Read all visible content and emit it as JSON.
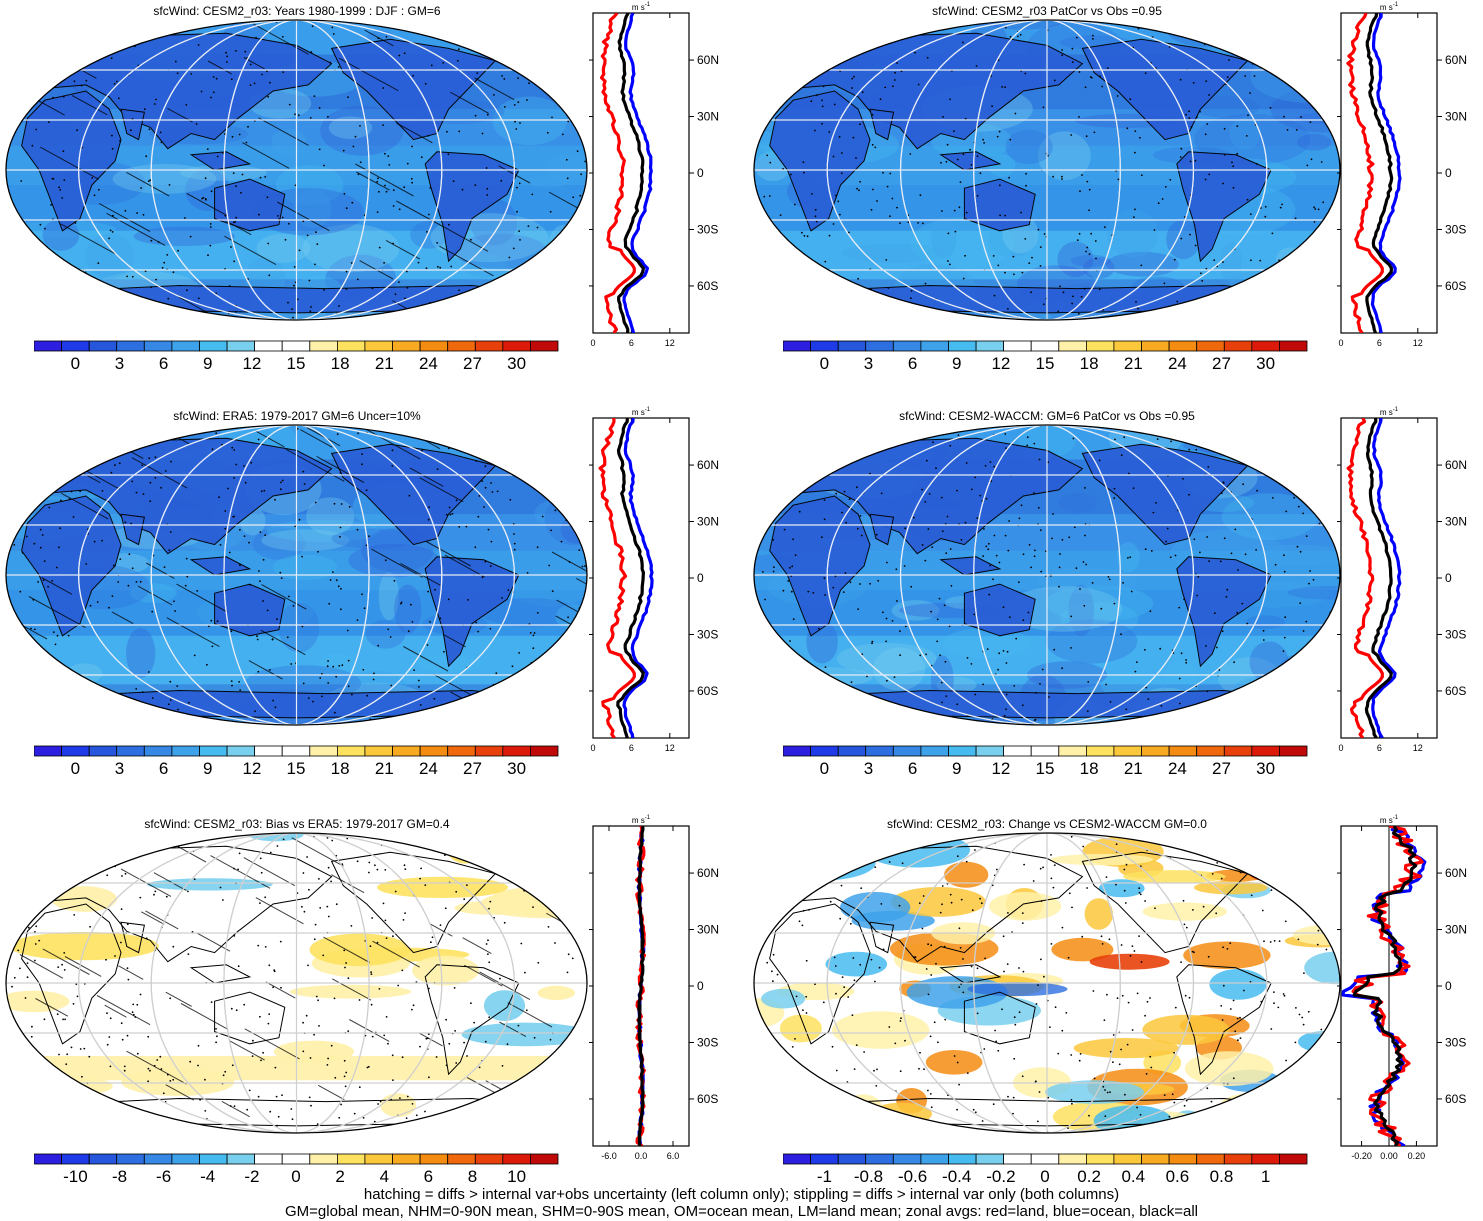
{
  "footer": {
    "line1": "hatching = diffs > internal var+obs uncertainty (left column only); stippling = diffs > internal var only (both columns)",
    "line2": "GM=global mean, NHM=0-90N mean, SHM=0-90S mean, OM=ocean mean, LM=land mean; zonal avgs: red=land, blue=ocean, black=all"
  },
  "colorbars": {
    "abs": {
      "labels": [
        "0",
        "3",
        "6",
        "9",
        "12",
        "15",
        "18",
        "21",
        "24",
        "27",
        "30"
      ],
      "colors": [
        "#2c1fe0",
        "#1f3be8",
        "#2556dc",
        "#2d6fe0",
        "#3688e4",
        "#3ea2ea",
        "#46bbf0",
        "#79cfee",
        "#ffffff",
        "#ffffff",
        "#fff1a8",
        "#fde25f",
        "#fbc83b",
        "#f8aa22",
        "#f58c12",
        "#f0680c",
        "#e8400a",
        "#dc1a0a",
        "#c00a0a"
      ]
    },
    "bias": {
      "labels": [
        "-10",
        "-8",
        "-6",
        "-4",
        "-2",
        "0",
        "2",
        "4",
        "6",
        "8",
        "10"
      ],
      "colors": [
        "#2c1fe0",
        "#1f3be8",
        "#2556dc",
        "#2d6fe0",
        "#3688e4",
        "#3ea2ea",
        "#46bbf0",
        "#79cfee",
        "#ffffff",
        "#ffffff",
        "#fff1a8",
        "#fde25f",
        "#fbc83b",
        "#f8aa22",
        "#f58c12",
        "#f0680c",
        "#e8400a",
        "#dc1a0a",
        "#c00a0a"
      ]
    },
    "change": {
      "labels": [
        "-1",
        "-0.8",
        "-0.6",
        "-0.4",
        "-0.2",
        "0",
        "0.2",
        "0.4",
        "0.6",
        "0.8",
        "1"
      ],
      "colors": [
        "#2c1fe0",
        "#1f3be8",
        "#2556dc",
        "#2d6fe0",
        "#3688e4",
        "#3ea2ea",
        "#46bbf0",
        "#79cfee",
        "#ffffff",
        "#ffffff",
        "#fff1a8",
        "#fde25f",
        "#fbc83b",
        "#f8aa22",
        "#f58c12",
        "#f0680c",
        "#e8400a",
        "#dc1a0a",
        "#c00a0a"
      ]
    }
  },
  "lat_labels": [
    "60N",
    "30N",
    "0",
    "30S",
    "60S"
  ],
  "units": "m s",
  "units_sup": "-1",
  "panels": [
    {
      "title": "sfcWind: CESM2_r03: Years 1980-1999 : DJF : GM=6",
      "map_style": "abs",
      "hatched": true,
      "profile": {
        "xlim": [
          0,
          15
        ],
        "xticks": [
          "0",
          "6",
          "12"
        ],
        "range": "abs",
        "chart_data": {
          "type": "line",
          "x_label": "m s-1",
          "series": [
            {
              "name": "land",
              "color": "#ff0000"
            },
            {
              "name": "ocean",
              "color": "#0000ff"
            },
            {
              "name": "all",
              "color": "#000000"
            }
          ]
        }
      }
    },
    {
      "title": "sfcWind: CESM2_r03 PatCor vs Obs =0.95",
      "map_style": "abs",
      "hatched": false,
      "profile": {
        "xlim": [
          0,
          15
        ],
        "xticks": [
          "0",
          "6",
          "12"
        ],
        "range": "abs",
        "chart_data": {
          "type": "line",
          "x_label": "m s-1",
          "series": [
            {
              "name": "land",
              "color": "#ff0000"
            },
            {
              "name": "ocean",
              "color": "#0000ff"
            },
            {
              "name": "all",
              "color": "#000000"
            }
          ]
        }
      }
    },
    {
      "title": "sfcWind: ERA5: 1979-2017 GM=6 Uncer=10%",
      "map_style": "abs",
      "hatched": true,
      "profile": {
        "xlim": [
          0,
          15
        ],
        "xticks": [
          "0",
          "6",
          "12"
        ],
        "range": "abs",
        "chart_data": {
          "type": "line",
          "x_label": "m s-1",
          "series": [
            {
              "name": "land",
              "color": "#ff0000"
            },
            {
              "name": "ocean",
              "color": "#0000ff"
            },
            {
              "name": "all",
              "color": "#000000"
            }
          ]
        }
      }
    },
    {
      "title": "sfcWind: CESM2-WACCM: GM=6 PatCor vs Obs =0.95",
      "map_style": "abs",
      "hatched": false,
      "profile": {
        "xlim": [
          0,
          15
        ],
        "xticks": [
          "0",
          "6",
          "12"
        ],
        "range": "abs",
        "chart_data": {
          "type": "line",
          "x_label": "m s-1",
          "series": [
            {
              "name": "land",
              "color": "#ff0000"
            },
            {
              "name": "ocean",
              "color": "#0000ff"
            },
            {
              "name": "all",
              "color": "#000000"
            }
          ]
        }
      }
    },
    {
      "title": "sfcWind: CESM2_r03: Bias vs ERA5: 1979-2017 GM=0.4",
      "map_style": "bias",
      "hatched": true,
      "profile": {
        "xlim": [
          -9,
          9
        ],
        "xticks": [
          "-6.0",
          "0.0",
          "6.0"
        ],
        "range": "bias",
        "chart_data": {
          "type": "line",
          "x_label": "m s-1",
          "series": [
            {
              "name": "land",
              "color": "#ff0000"
            },
            {
              "name": "ocean",
              "color": "#0000ff"
            },
            {
              "name": "all",
              "color": "#000000"
            }
          ]
        }
      }
    },
    {
      "title": "sfcWind: CESM2_r03: Change vs CESM2-WACCM GM=0.0",
      "map_style": "change",
      "hatched": false,
      "profile": {
        "xlim": [
          -0.35,
          0.35
        ],
        "xticks": [
          "-0.20",
          "0.00",
          "0.20"
        ],
        "range": "change",
        "chart_data": {
          "type": "line",
          "x_label": "m s-1",
          "series": [
            {
              "name": "land",
              "color": "#ff0000"
            },
            {
              "name": "ocean",
              "color": "#0000ff"
            },
            {
              "name": "all",
              "color": "#000000"
            }
          ]
        }
      }
    }
  ]
}
